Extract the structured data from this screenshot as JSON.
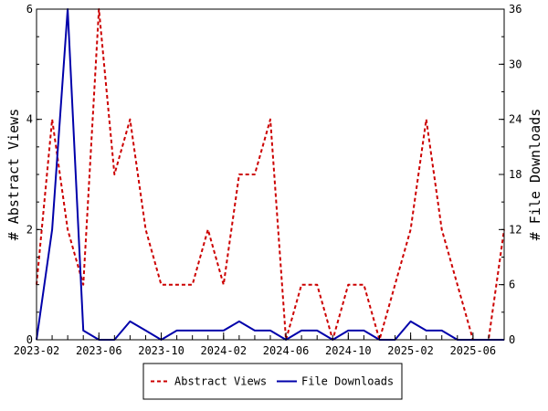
{
  "chart_data": {
    "type": "line",
    "x": [
      "2023-02",
      "2023-03",
      "2023-04",
      "2023-05",
      "2023-06",
      "2023-07",
      "2023-08",
      "2023-09",
      "2023-10",
      "2023-11",
      "2023-12",
      "2024-01",
      "2024-02",
      "2024-03",
      "2024-04",
      "2024-05",
      "2024-06",
      "2024-07",
      "2024-08",
      "2024-09",
      "2024-10",
      "2024-11",
      "2024-12",
      "2025-01",
      "2025-02",
      "2025-03",
      "2025-04",
      "2025-05",
      "2025-06",
      "2025-07",
      "2025-08"
    ],
    "xticks": [
      "2023-02",
      "2023-06",
      "2023-10",
      "2024-02",
      "2024-06",
      "2024-10",
      "2025-02",
      "2025-06"
    ],
    "y_left": {
      "label": "# Abstract Views",
      "range": [
        0,
        6
      ],
      "ticks": [
        "0",
        "2",
        "4",
        "6"
      ]
    },
    "y_right": {
      "label": "# File Downloads",
      "range": [
        0,
        36
      ],
      "ticks": [
        "0",
        "6",
        "12",
        "18",
        "24",
        "30",
        "36"
      ]
    },
    "series": [
      {
        "name": "Abstract Views",
        "axis": "left",
        "color": "#cc0000",
        "style": "dashed",
        "values": [
          1,
          4,
          2,
          1,
          6,
          3,
          4,
          2,
          1,
          1,
          1,
          2,
          1,
          3,
          3,
          4,
          0,
          1,
          1,
          0,
          1,
          1,
          0,
          1,
          2,
          4,
          2,
          1,
          0,
          0,
          2
        ]
      },
      {
        "name": "File Downloads",
        "axis": "right",
        "color": "#0000aa",
        "style": "solid",
        "values": [
          0,
          12,
          36,
          1,
          0,
          0,
          2,
          1,
          0,
          1,
          1,
          1,
          1,
          2,
          1,
          1,
          0,
          1,
          1,
          0,
          1,
          1,
          0,
          0,
          2,
          1,
          1,
          0,
          0,
          0,
          0
        ]
      }
    ],
    "legend": {
      "placement": "bottom-center"
    },
    "grid": false
  }
}
